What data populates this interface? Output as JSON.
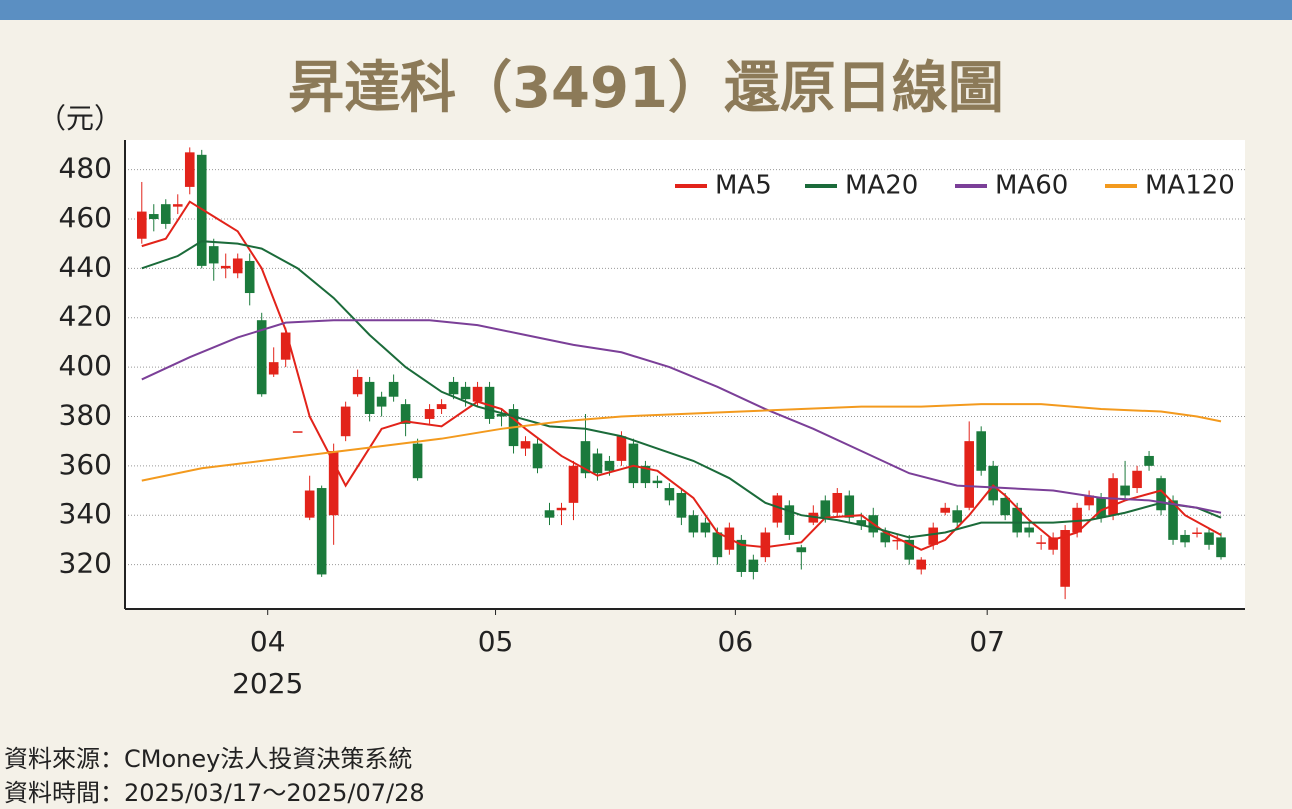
{
  "chart_data": {
    "type": "candlestick",
    "title": "昇達科（3491）還原日線圖",
    "y_axis_label": "（元）",
    "year_label": "2025",
    "source": "資料來源：CMoney法人投資決策系統",
    "period": "資料時間：2025/03/17～2025/07/28",
    "ylim": [
      302,
      492
    ],
    "yticks": [
      320,
      340,
      360,
      380,
      400,
      420,
      440,
      460,
      480
    ],
    "xlim": [
      -1.4,
      92
    ],
    "xticks": [
      {
        "value": 10.5,
        "label": "04"
      },
      {
        "value": 29.5,
        "label": "05"
      },
      {
        "value": 49.5,
        "label": "06"
      },
      {
        "value": 70.5,
        "label": "07"
      }
    ],
    "grid": true,
    "legend": "top-right",
    "up_color": "#e2231a",
    "down_color": "#1b7a3c",
    "open": [
      452,
      462,
      466,
      465,
      473,
      486,
      449,
      440,
      438,
      443,
      419,
      397,
      403,
      374,
      339,
      351,
      340,
      372,
      389,
      394,
      388,
      394,
      385,
      369,
      379,
      383,
      394,
      392,
      386,
      392,
      381,
      383,
      367,
      369,
      342,
      342,
      345,
      370,
      365,
      362,
      362,
      369,
      360,
      354,
      351,
      349,
      340,
      337,
      333,
      326,
      330,
      322,
      323,
      337,
      344,
      327,
      337,
      346,
      341,
      348,
      338,
      340,
      333,
      330,
      330,
      318,
      328,
      341,
      342,
      343,
      374,
      360,
      347,
      343,
      335,
      329,
      326,
      311,
      333,
      344,
      347,
      340,
      352,
      351,
      364,
      355,
      346,
      332,
      333,
      333,
      331
    ],
    "close": [
      463,
      460,
      458,
      466,
      487,
      441,
      442,
      441,
      444,
      430,
      389,
      402,
      414,
      374,
      350,
      316,
      366,
      384,
      396,
      381,
      384,
      388,
      377,
      355,
      383,
      385,
      389,
      387,
      392,
      379,
      380,
      368,
      370,
      359,
      339,
      343,
      360,
      357,
      357,
      358,
      372,
      353,
      353,
      353,
      346,
      339,
      333,
      333,
      323,
      335,
      317,
      317,
      333,
      348,
      332,
      325,
      341,
      339,
      349,
      339,
      336,
      333,
      329,
      330,
      322,
      322,
      335,
      343,
      337,
      370,
      358,
      346,
      340,
      333,
      333,
      329,
      331,
      334,
      343,
      348,
      339,
      355,
      348,
      358,
      360,
      342,
      330,
      329,
      333,
      328,
      323
    ],
    "high": [
      475,
      466,
      468,
      470,
      489,
      488,
      452,
      446,
      446,
      446,
      422,
      408,
      416,
      374,
      356,
      352,
      369,
      386,
      399,
      396,
      390,
      397,
      387,
      371,
      385,
      387,
      396,
      394,
      394,
      394,
      383,
      385,
      372,
      371,
      345,
      345,
      362,
      381,
      367,
      364,
      374,
      371,
      362,
      356,
      353,
      351,
      342,
      339,
      335,
      337,
      332,
      324,
      335,
      349,
      346,
      328,
      344,
      348,
      351,
      350,
      341,
      343,
      335,
      332,
      332,
      323,
      337,
      345,
      344,
      378,
      376,
      362,
      349,
      345,
      337,
      332,
      333,
      336,
      345,
      350,
      349,
      357,
      362,
      360,
      366,
      356,
      348,
      334,
      335,
      335,
      333
    ],
    "low": [
      450,
      455,
      456,
      462,
      470,
      440,
      435,
      436,
      436,
      425,
      388,
      396,
      400,
      374,
      338,
      315,
      328,
      370,
      388,
      378,
      380,
      386,
      372,
      354,
      377,
      381,
      387,
      384,
      384,
      377,
      376,
      365,
      364,
      357,
      336,
      336,
      338,
      355,
      354,
      356,
      360,
      351,
      351,
      351,
      344,
      336,
      331,
      331,
      320,
      324,
      315,
      314,
      321,
      335,
      330,
      318,
      336,
      337,
      339,
      337,
      334,
      331,
      327,
      326,
      320,
      316,
      326,
      340,
      335,
      342,
      356,
      344,
      338,
      331,
      331,
      326,
      324,
      306,
      331,
      342,
      337,
      338,
      346,
      349,
      358,
      340,
      328,
      327,
      331,
      326,
      322
    ],
    "series": [
      {
        "name": "MA5",
        "color": "#e2231a",
        "x": [
          0,
          2,
          4,
          6,
          8,
          10,
          12,
          14,
          17,
          20,
          22,
          25,
          28,
          30,
          32,
          35,
          38,
          41,
          43,
          46,
          48,
          50,
          52,
          55,
          57,
          60,
          62,
          65,
          67,
          69,
          71,
          72,
          74,
          76,
          78,
          80,
          82,
          85,
          87,
          90
        ],
        "values": [
          449,
          452,
          467,
          461,
          455,
          440,
          415,
          380,
          352,
          375,
          378,
          376,
          386,
          383,
          375,
          364,
          356,
          360,
          358,
          347,
          333,
          328,
          327,
          329,
          339,
          340,
          333,
          326,
          330,
          340,
          352,
          348,
          338,
          330,
          333,
          342,
          346,
          350,
          340,
          332
        ]
      },
      {
        "name": "MA20",
        "color": "#1b6b3a",
        "x": [
          0,
          3,
          5,
          8,
          10,
          13,
          16,
          19,
          22,
          25,
          28,
          31,
          34,
          37,
          40,
          43,
          46,
          49,
          52,
          55,
          58,
          61,
          64,
          67,
          70,
          73,
          76,
          79,
          82,
          85,
          88,
          90
        ],
        "values": [
          440,
          445,
          451,
          450,
          448,
          440,
          428,
          413,
          400,
          390,
          384,
          380,
          376,
          375,
          372,
          367,
          362,
          355,
          345,
          340,
          338,
          335,
          331,
          333,
          337,
          337,
          337,
          338,
          341,
          345,
          343,
          339
        ]
      },
      {
        "name": "MA60",
        "color": "#7b3f98",
        "x": [
          0,
          4,
          8,
          12,
          16,
          20,
          24,
          28,
          32,
          36,
          40,
          44,
          48,
          52,
          56,
          60,
          64,
          68,
          72,
          76,
          80,
          84,
          88,
          90
        ],
        "values": [
          395,
          404,
          412,
          418,
          419,
          419,
          419,
          417,
          413,
          409,
          406,
          400,
          392,
          383,
          375,
          366,
          357,
          352,
          351,
          350,
          347,
          346,
          343,
          341
        ]
      },
      {
        "name": "MA120",
        "color": "#f39a1e",
        "x": [
          0,
          5,
          10,
          15,
          20,
          25,
          30,
          35,
          40,
          45,
          50,
          55,
          60,
          65,
          70,
          75,
          80,
          85,
          88,
          90
        ],
        "values": [
          354,
          359,
          362,
          365,
          368,
          371,
          375,
          378,
          380,
          381,
          382,
          383,
          384,
          384,
          385,
          385,
          383,
          382,
          380,
          378
        ]
      }
    ]
  }
}
